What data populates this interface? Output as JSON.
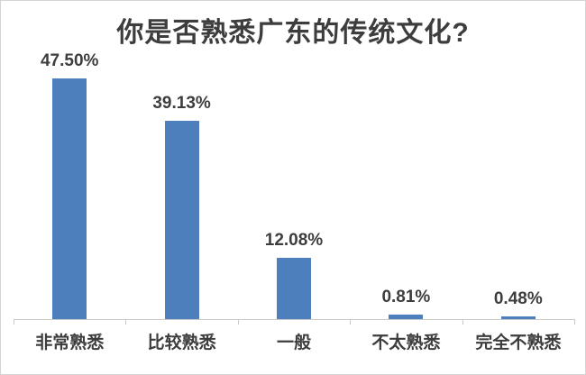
{
  "chart_data": {
    "type": "bar",
    "title": "你是否熟悉广东的传统文化?",
    "categories": [
      "非常熟悉",
      "比较熟悉",
      "一般",
      "不太熟悉",
      "完全不熟悉"
    ],
    "values": [
      47.5,
      39.13,
      12.08,
      0.81,
      0.48
    ],
    "value_labels": [
      "47.50%",
      "39.13%",
      "12.08%",
      "0.81%",
      "0.48%"
    ],
    "xlabel": "",
    "ylabel": "",
    "ylim": [
      0,
      50
    ],
    "grid": false,
    "legend": false,
    "bar_color": "#4d7fbd",
    "text_color": "#3d3d3d",
    "axis_color": "#c9c9c9",
    "background_color": "#ffffff"
  }
}
